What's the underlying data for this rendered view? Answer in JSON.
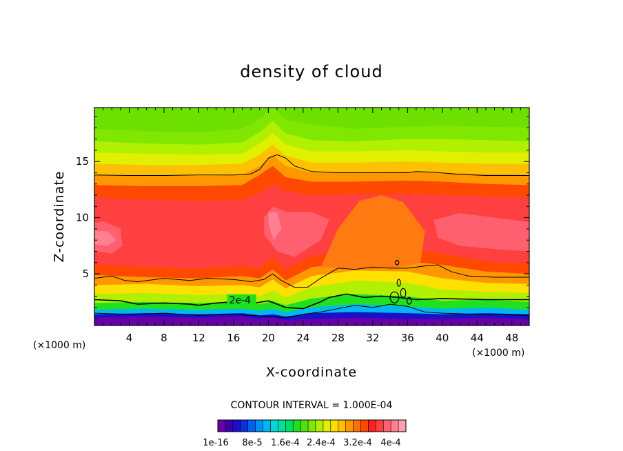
{
  "chart_data": {
    "type": "heatmap",
    "title": "density of cloud",
    "xlabel": "X-coordinate",
    "ylabel": "Z-coordinate",
    "x_unit": "(×1000 m)",
    "x_unit_right": "(×1000 m)",
    "xlim": [
      0,
      50
    ],
    "ylim": [
      0.4,
      19.8
    ],
    "x_ticks": [
      4,
      8,
      12,
      16,
      20,
      24,
      28,
      32,
      36,
      40,
      44,
      48
    ],
    "y_ticks": [
      5,
      10,
      15
    ],
    "contour_interval_text": "CONTOUR INTERVAL = 1.000E-04",
    "contour_label": "2e-4",
    "contour_label_position": {
      "x": 15.5,
      "z": 2.5
    },
    "colorbar": {
      "min": 1e-16,
      "max": 0.0004,
      "labels": [
        "1e-16",
        "8e-5",
        "1.6e-4",
        "2.4e-4",
        "3.2e-4",
        "4e-4"
      ],
      "colors": [
        "#6600aa",
        "#3a00b0",
        "#1a10c8",
        "#0a30e0",
        "#0060f0",
        "#0090f8",
        "#00b8f0",
        "#00d8d8",
        "#00e0a0",
        "#00e060",
        "#20e020",
        "#50e010",
        "#80e800",
        "#b0f000",
        "#e0f000",
        "#ffe000",
        "#ffc000",
        "#ff9800",
        "#ff7000",
        "#ff4800",
        "#ff2020",
        "#ff4040",
        "#ff6070",
        "#ff8090",
        "#ffa0a8"
      ]
    },
    "field_levels": [
      {
        "x": [
          0,
          6,
          12,
          17,
          19,
          20.5,
          22,
          25,
          30,
          36,
          40,
          45,
          50
        ],
        "z": [
          1.1,
          1.2,
          1.1,
          1.2,
          1.0,
          1.1,
          0.9,
          1.0,
          1.1,
          1.0,
          1.0,
          1.1,
          1.0
        ],
        "color": "#6600aa"
      },
      {
        "x": [
          0,
          6,
          12,
          17,
          19,
          20.5,
          22,
          25,
          30,
          36,
          40,
          45,
          50
        ],
        "z": [
          1.4,
          1.5,
          1.4,
          1.5,
          1.3,
          1.4,
          1.2,
          1.5,
          1.6,
          1.5,
          1.4,
          1.5,
          1.4
        ],
        "color": "#1a10c8"
      },
      {
        "x": [
          0,
          6,
          12,
          17,
          19,
          20.5,
          22,
          25,
          30,
          36,
          40,
          45,
          50
        ],
        "z": [
          1.8,
          1.9,
          1.8,
          1.9,
          1.7,
          1.9,
          1.6,
          2.0,
          2.3,
          2.1,
          1.9,
          2.0,
          1.8
        ],
        "color": "#00b8f0"
      },
      {
        "x": [
          0,
          6,
          12,
          17,
          19,
          20.5,
          22,
          25,
          30,
          36,
          40,
          45,
          50
        ],
        "z": [
          2.4,
          2.5,
          2.4,
          2.5,
          2.3,
          2.6,
          2.2,
          2.8,
          3.2,
          3.0,
          2.6,
          2.7,
          2.5
        ],
        "color": "#20e020"
      },
      {
        "x": [
          0,
          6,
          12,
          17,
          19,
          20.5,
          22,
          25,
          30,
          36,
          40,
          45,
          50
        ],
        "z": [
          3.2,
          3.3,
          3.1,
          3.2,
          3.0,
          3.5,
          2.9,
          3.8,
          4.4,
          4.2,
          3.6,
          3.4,
          3.3
        ],
        "color": "#b0f000"
      },
      {
        "x": [
          0,
          6,
          12,
          17,
          19,
          20.5,
          22,
          25,
          30,
          36,
          40,
          45,
          50
        ],
        "z": [
          4.0,
          4.1,
          3.9,
          4.0,
          3.8,
          4.5,
          3.7,
          4.8,
          5.3,
          5.2,
          4.6,
          4.2,
          4.1
        ],
        "color": "#ffe000"
      },
      {
        "x": [
          0,
          6,
          12,
          17,
          19,
          20.5,
          22,
          25,
          30,
          36,
          40,
          45,
          50
        ],
        "z": [
          4.9,
          4.7,
          4.6,
          4.8,
          4.6,
          5.4,
          4.4,
          5.6,
          6.0,
          6.1,
          5.8,
          5.2,
          5.0
        ],
        "color": "#ff9800"
      },
      {
        "x": [
          0,
          6,
          12,
          17,
          19,
          20.5,
          22,
          25,
          30,
          36,
          40,
          45,
          50
        ],
        "z": [
          5.8,
          5.6,
          5.5,
          5.7,
          5.5,
          6.5,
          5.4,
          6.6,
          7.0,
          7.2,
          6.8,
          6.1,
          5.9
        ],
        "color": "#ff4800"
      },
      {
        "x": [
          0,
          6,
          12,
          17,
          19,
          20.5,
          22,
          25,
          30,
          36,
          40,
          45,
          50
        ],
        "z": [
          11.8,
          11.6,
          11.5,
          11.6,
          12.2,
          13.0,
          12.4,
          12.0,
          12.1,
          12.1,
          12.0,
          11.9,
          11.8
        ],
        "color": "#ff4040"
      },
      {
        "x": [
          0,
          6,
          12,
          17,
          19,
          20.5,
          22,
          25,
          30,
          36,
          40,
          45,
          50
        ],
        "z": [
          12.9,
          12.8,
          12.8,
          12.9,
          13.8,
          14.6,
          13.6,
          13.2,
          13.2,
          13.3,
          13.2,
          13.0,
          12.9
        ],
        "color": "#ff4800"
      },
      {
        "x": [
          0,
          6,
          12,
          17,
          19,
          20.5,
          22,
          25,
          30,
          36,
          40,
          45,
          50
        ],
        "z": [
          13.8,
          13.7,
          13.7,
          13.8,
          14.6,
          15.6,
          14.6,
          14.0,
          14.0,
          14.1,
          14.0,
          13.9,
          13.8
        ],
        "color": "#ff9800"
      },
      {
        "x": [
          0,
          6,
          12,
          17,
          19,
          20.5,
          22,
          25,
          30,
          36,
          40,
          45,
          50
        ],
        "z": [
          14.8,
          14.7,
          14.7,
          14.8,
          15.6,
          16.5,
          15.5,
          14.9,
          14.9,
          15.0,
          14.9,
          14.8,
          14.8
        ],
        "color": "#ffc000"
      },
      {
        "x": [
          0,
          6,
          12,
          17,
          19,
          20.5,
          22,
          25,
          30,
          36,
          40,
          45,
          50
        ],
        "z": [
          15.8,
          15.7,
          15.6,
          15.7,
          16.6,
          17.5,
          16.5,
          15.9,
          15.9,
          16.0,
          15.9,
          15.8,
          15.8
        ],
        "color": "#e0f000"
      },
      {
        "x": [
          0,
          6,
          12,
          17,
          19,
          20.5,
          22,
          25,
          30,
          36,
          40,
          45,
          50
        ],
        "z": [
          16.8,
          16.6,
          16.5,
          16.7,
          17.6,
          18.6,
          17.5,
          16.9,
          16.8,
          17.0,
          17.0,
          16.9,
          16.8
        ],
        "color": "#b0f000"
      },
      {
        "x": [
          0,
          6,
          12,
          17,
          19,
          20.5,
          22,
          25,
          30,
          36,
          40,
          45,
          50
        ],
        "z": [
          17.9,
          17.7,
          17.6,
          17.9,
          18.8,
          19.8,
          18.7,
          18.3,
          17.9,
          18.1,
          18.2,
          18.1,
          18.0
        ],
        "color": "#80e800"
      }
    ],
    "core_regions": [
      {
        "x": [
          0,
          1,
          3,
          3.2,
          2,
          0
        ],
        "z": [
          9.5,
          9.7,
          9.0,
          7.5,
          6.8,
          7.0
        ],
        "color": "#ff6070"
      },
      {
        "x": [
          0,
          1.5,
          2.5,
          1.5,
          0
        ],
        "z": [
          8.8,
          8.8,
          8.0,
          7.5,
          7.6
        ],
        "color": "#ff8090"
      },
      {
        "x": [
          19.5,
          20.5,
          22,
          25,
          27,
          26,
          23,
          21,
          19.5
        ],
        "z": [
          10.0,
          11.0,
          10.5,
          10.5,
          9.8,
          8.0,
          6.5,
          7.0,
          8.5
        ],
        "color": "#ff6070"
      },
      {
        "x": [
          20,
          21,
          21.5,
          20.6,
          20
        ],
        "z": [
          10.5,
          10.5,
          9.0,
          8.0,
          9.5
        ],
        "color": "#ff8090"
      },
      {
        "x": [
          39,
          42,
          46,
          50,
          50,
          46,
          42,
          39.5
        ],
        "z": [
          9.8,
          10.4,
          10.0,
          9.6,
          7.0,
          7.2,
          7.5,
          8.2
        ],
        "color": "#ff6070"
      }
    ],
    "updraft_region": {
      "x": [
        26,
        28,
        30.5,
        33,
        35.5,
        38,
        37.5,
        35,
        32,
        29,
        26.5
      ],
      "z": [
        5.5,
        9.0,
        11.5,
        12.0,
        11.4,
        8.8,
        6.0,
        5.6,
        5.4,
        5.5,
        5.6
      ],
      "color": "#ff7a10"
    },
    "contour_lines": [
      {
        "level": "upper",
        "x": [
          0,
          4,
          8,
          12,
          16,
          18,
          19,
          20,
          21,
          22,
          23,
          25,
          28,
          32,
          36,
          37,
          39,
          42,
          45,
          50
        ],
        "z": [
          13.8,
          13.75,
          13.75,
          13.8,
          13.8,
          13.9,
          14.3,
          15.3,
          15.6,
          15.3,
          14.6,
          14.1,
          14.0,
          14.0,
          14.0,
          14.1,
          14.05,
          13.85,
          13.75,
          13.75
        ]
      },
      {
        "level": "middle",
        "x": [
          0,
          2,
          3.5,
          5,
          8,
          11,
          13,
          16,
          18,
          19.5,
          20.5,
          21.5,
          23,
          24.5,
          26,
          28,
          30,
          32,
          34,
          36,
          38,
          39.5,
          41,
          43,
          46,
          50
        ],
        "z": [
          4.6,
          4.8,
          4.4,
          4.3,
          4.6,
          4.4,
          4.6,
          4.5,
          4.3,
          4.5,
          5.0,
          4.4,
          3.8,
          3.8,
          4.6,
          5.5,
          5.4,
          5.6,
          5.5,
          5.5,
          5.7,
          5.8,
          5.2,
          4.8,
          4.7,
          4.7
        ]
      },
      {
        "level": "2e-4",
        "x": [
          0,
          3,
          5,
          8,
          11,
          12,
          14,
          15.8,
          18.5,
          20,
          21,
          22,
          24,
          26,
          27,
          29,
          31,
          33,
          35,
          37,
          40,
          45,
          50
        ],
        "z": [
          2.7,
          2.6,
          2.3,
          2.4,
          2.3,
          2.2,
          2.4,
          2.5,
          2.4,
          2.6,
          2.3,
          2.0,
          1.9,
          2.5,
          2.9,
          3.2,
          2.9,
          3.0,
          2.9,
          2.7,
          2.8,
          2.7,
          2.7
        ]
      },
      {
        "level": "lower",
        "x": [
          0,
          4,
          8,
          12,
          16,
          18,
          20,
          22,
          24,
          26,
          28,
          30,
          32,
          34,
          36,
          38,
          40,
          44,
          50
        ],
        "z": [
          1.5,
          1.4,
          1.5,
          1.3,
          1.4,
          1.3,
          1.2,
          1.1,
          1.4,
          1.6,
          1.9,
          2.2,
          2.0,
          2.3,
          2.1,
          1.6,
          1.5,
          1.4,
          1.3
        ]
      }
    ],
    "contour_blobs": [
      {
        "x": 34.5,
        "z": 2.9,
        "rx": 0.5,
        "rz": 0.5
      },
      {
        "x": 35.5,
        "z": 3.3,
        "rx": 0.3,
        "rz": 0.4
      },
      {
        "x": 36.2,
        "z": 2.6,
        "rx": 0.25,
        "rz": 0.3
      },
      {
        "x": 35.0,
        "z": 4.2,
        "rx": 0.2,
        "rz": 0.3
      },
      {
        "x": 34.8,
        "z": 6.0,
        "rx": 0.2,
        "rz": 0.2
      }
    ]
  }
}
